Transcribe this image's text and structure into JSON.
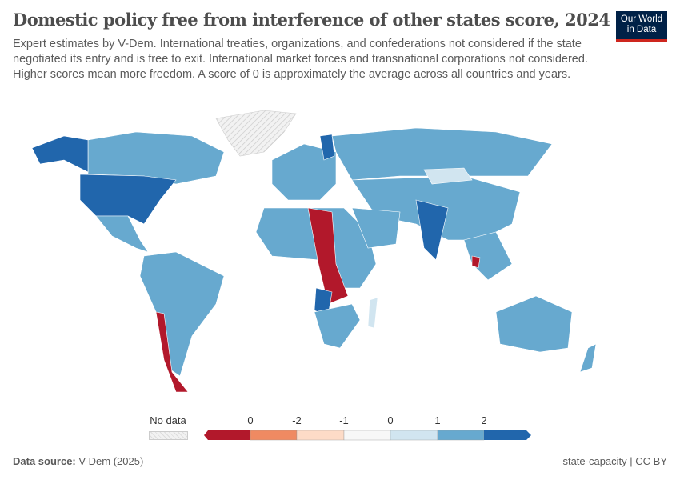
{
  "title": "Domestic policy free from interference of other states score, 2024",
  "subtitle": "Expert estimates by V-Dem. International treaties, organizations, and confederations not considered if the state negotiated its entry and is free to exit. International market forces and transnational corporations not considered. Higher scores mean more freedom. A score of 0 is approximately the average across all countries and years.",
  "logo": {
    "line1": "Our World",
    "line2": "in Data"
  },
  "colors": {
    "dark_red": "#b2182b",
    "orange": "#ef8a62",
    "light_orange": "#fddbc7",
    "neutral": "#f7f7f7",
    "light_blue": "#d1e5f0",
    "mid_blue": "#67a9cf",
    "dark_blue": "#2166ac",
    "no_data": "#e0e0e0"
  },
  "legend": {
    "no_data_label": "No data",
    "labels": [
      "0",
      "-2",
      "-1",
      "0",
      "1",
      "2"
    ]
  },
  "footer": {
    "source_label": "Data source:",
    "source": "V-Dem (2025)",
    "right": "state-capacity | CC BY"
  }
}
